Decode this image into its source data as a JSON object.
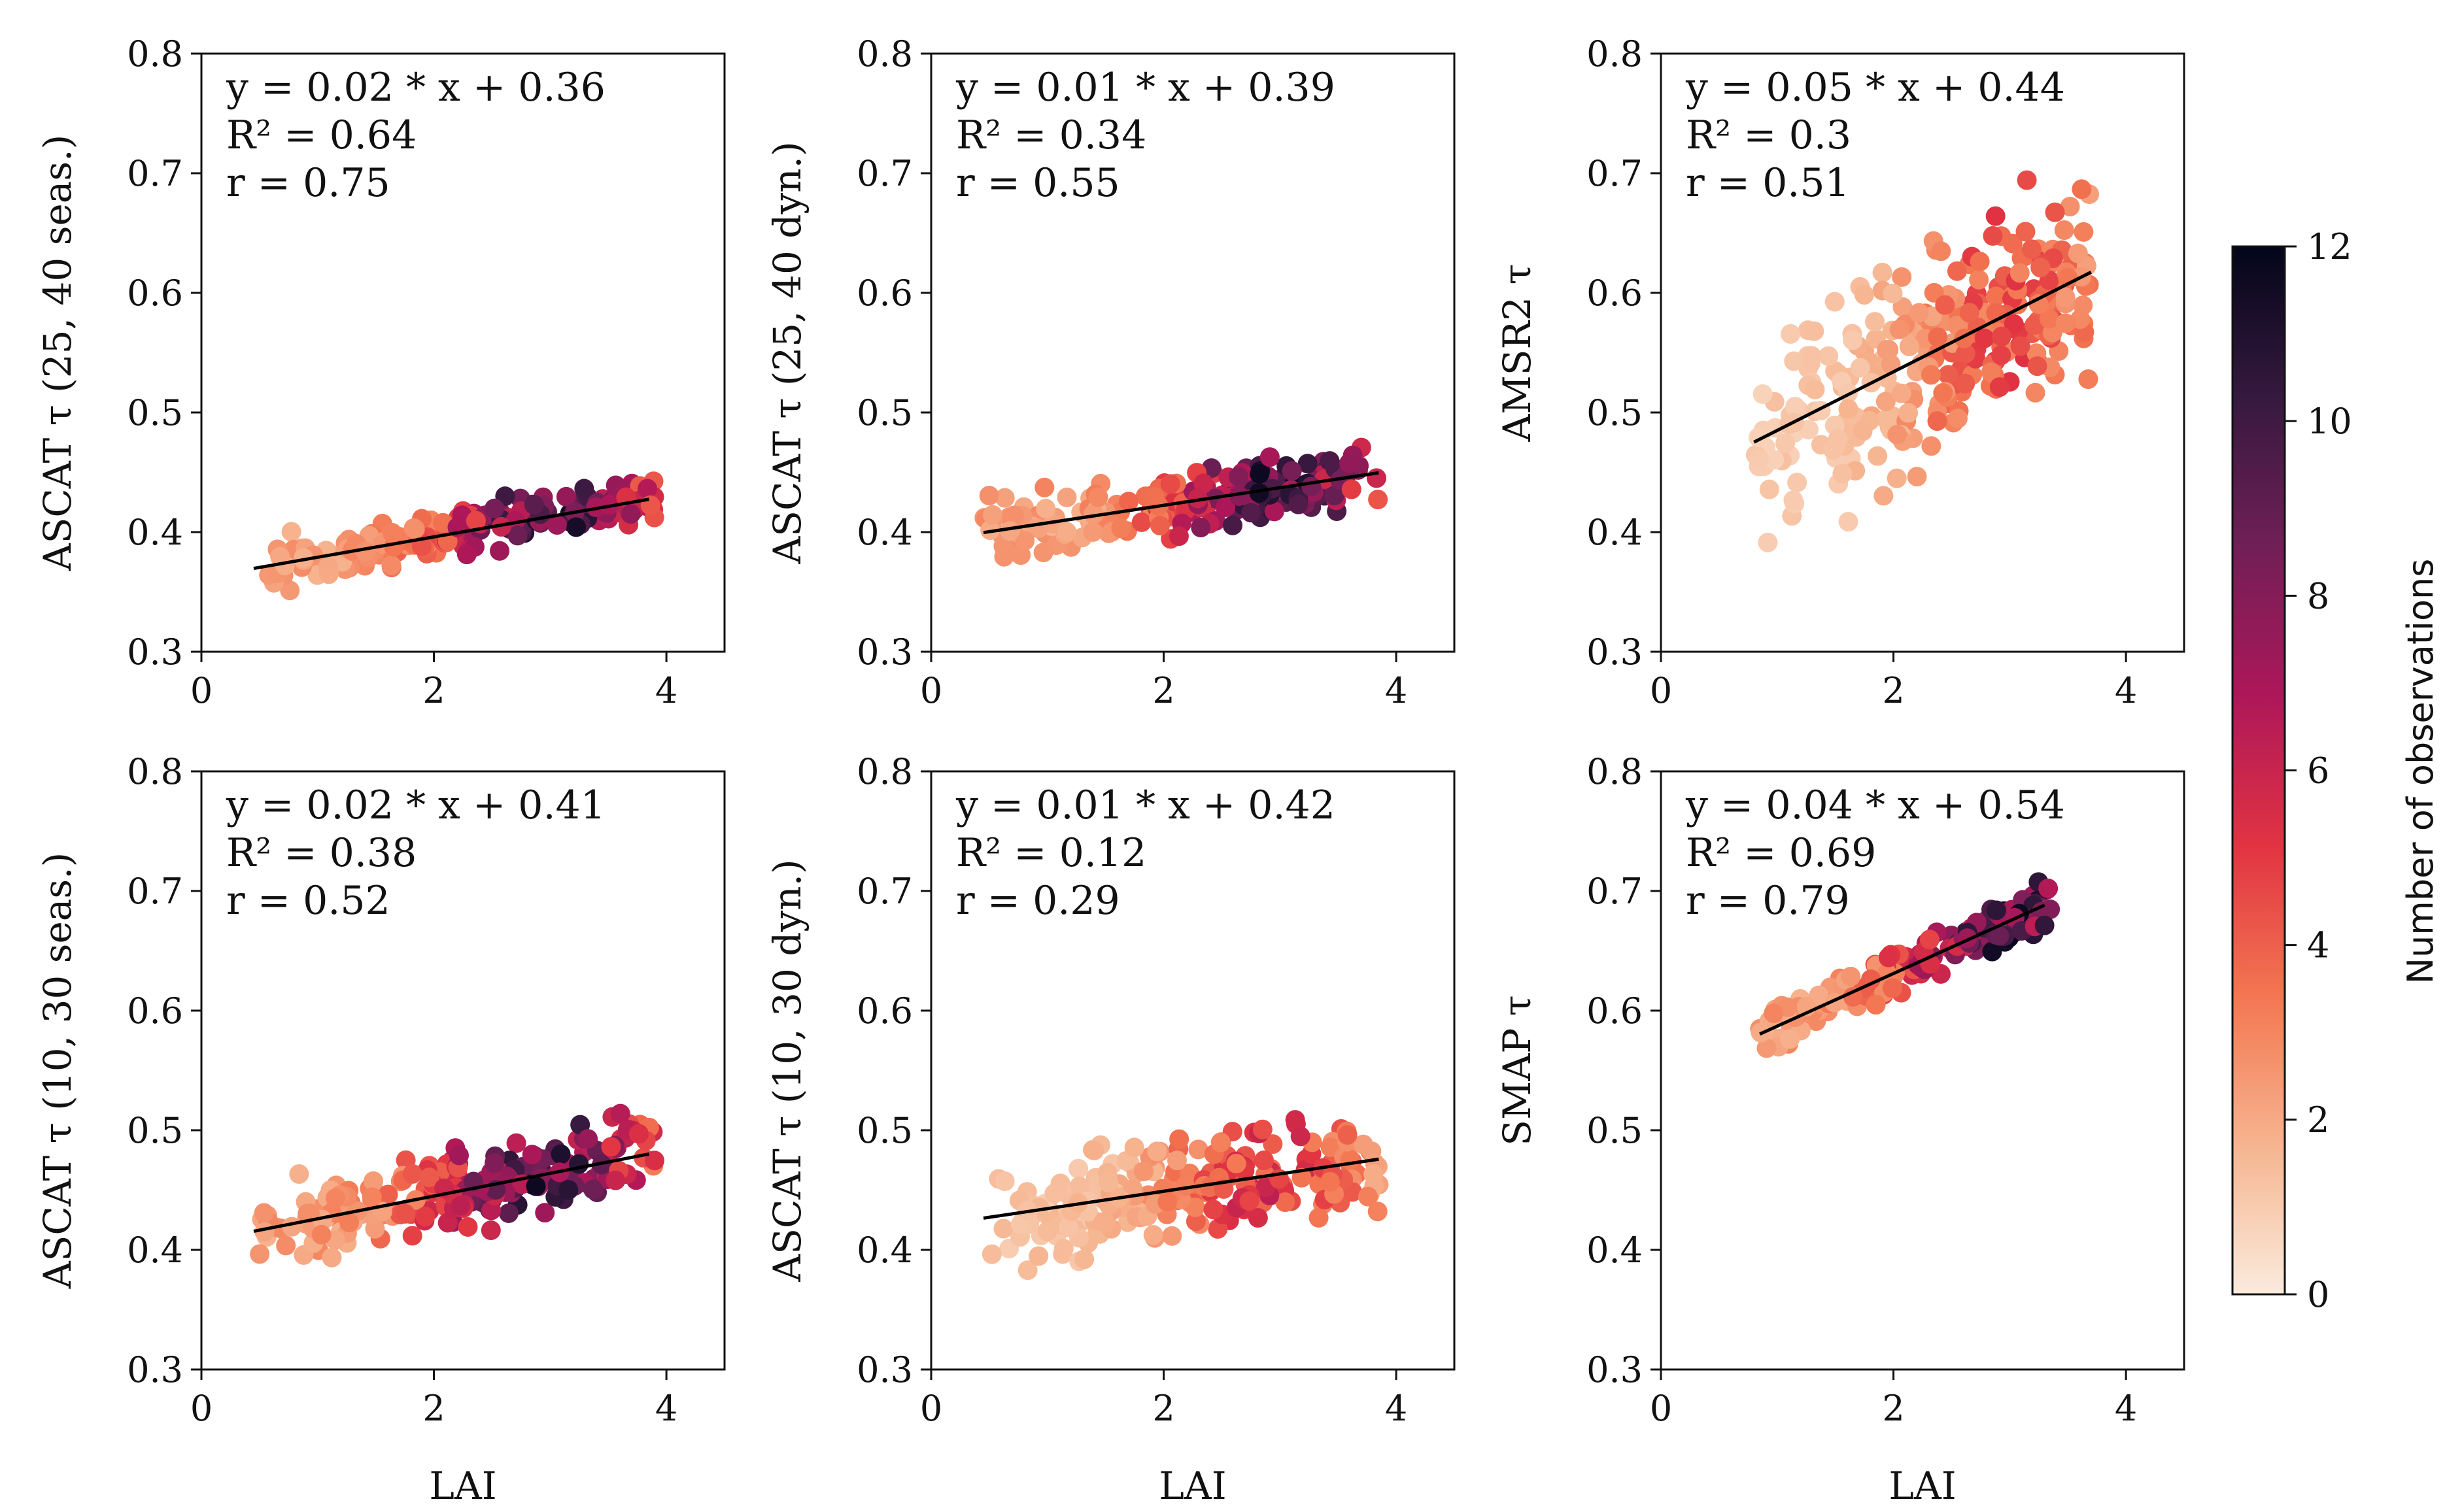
{
  "chart_data": [
    {
      "type": "scatter",
      "xlabel": "",
      "ylabel": "ASCAT τ (25, 40 seas.)",
      "xlim": [
        0,
        4.5
      ],
      "ylim": [
        0.3,
        0.8
      ],
      "xticks": [
        "0",
        "2",
        "4"
      ],
      "yticks": [
        "0.3",
        "0.4",
        "0.5",
        "0.6",
        "0.7",
        "0.8"
      ],
      "annotation": [
        "y = 0.02 * x + 0.36",
        "R² = 0.64",
        "r = 0.75"
      ],
      "fit": {
        "slope": 0.017,
        "intercept": 0.362,
        "x_range": [
          0.45,
          3.85
        ]
      },
      "points": {
        "x_range": [
          0.45,
          3.9
        ],
        "spread": 0.012,
        "color_peak_x": 3.0,
        "n": 220,
        "seed": 11
      }
    },
    {
      "type": "scatter",
      "xlabel": "",
      "ylabel": "ASCAT τ (25, 40 dyn.)",
      "xlim": [
        0,
        4.5
      ],
      "ylim": [
        0.3,
        0.8
      ],
      "xticks": [
        "0",
        "2",
        "4"
      ],
      "yticks": [
        "0.3",
        "0.4",
        "0.5",
        "0.6",
        "0.7",
        "0.8"
      ],
      "annotation": [
        "y = 0.01 * x + 0.39",
        "R² = 0.34",
        "r = 0.55"
      ],
      "fit": {
        "slope": 0.0147,
        "intercept": 0.393,
        "x_range": [
          0.45,
          3.85
        ]
      },
      "points": {
        "x_range": [
          0.45,
          3.85
        ],
        "spread": 0.018,
        "color_peak_x": 3.0,
        "n": 210,
        "seed": 23
      }
    },
    {
      "type": "scatter",
      "xlabel": "",
      "ylabel": "AMSR2 τ",
      "xlim": [
        0,
        4.5
      ],
      "ylim": [
        0.3,
        0.8
      ],
      "xticks": [
        "0",
        "2",
        "4"
      ],
      "yticks": [
        "0.3",
        "0.4",
        "0.5",
        "0.6",
        "0.7",
        "0.8"
      ],
      "annotation": [
        "y = 0.05 * x + 0.44",
        "R² = 0.3",
        "r = 0.51"
      ],
      "fit": {
        "slope": 0.049,
        "intercept": 0.436,
        "x_range": [
          0.8,
          3.7
        ]
      },
      "points": {
        "x_range": [
          0.8,
          3.7
        ],
        "spread": 0.055,
        "color_peak_x": 3.0,
        "n": 300,
        "seed": 37,
        "max_color": 5.5
      }
    },
    {
      "type": "scatter",
      "xlabel": "LAI",
      "ylabel": "ASCAT τ (10, 30 seas.)",
      "xlim": [
        0,
        4.5
      ],
      "ylim": [
        0.3,
        0.8
      ],
      "xticks": [
        "0",
        "2",
        "4"
      ],
      "yticks": [
        "0.3",
        "0.4",
        "0.5",
        "0.6",
        "0.7",
        "0.8"
      ],
      "annotation": [
        "y = 0.02 * x + 0.41",
        "R² = 0.38",
        "r = 0.52"
      ],
      "fit": {
        "slope": 0.019,
        "intercept": 0.407,
        "x_range": [
          0.45,
          3.85
        ]
      },
      "points": {
        "x_range": [
          0.45,
          3.9
        ],
        "spread": 0.02,
        "color_peak_x": 2.9,
        "n": 230,
        "seed": 41
      }
    },
    {
      "type": "scatter",
      "xlabel": "LAI",
      "ylabel": "ASCAT τ (10, 30 dyn.)",
      "xlim": [
        0,
        4.5
      ],
      "ylim": [
        0.3,
        0.8
      ],
      "xticks": [
        "0",
        "2",
        "4"
      ],
      "yticks": [
        "0.3",
        "0.4",
        "0.5",
        "0.6",
        "0.7",
        "0.8"
      ],
      "annotation": [
        "y = 0.01 * x + 0.42",
        "R² = 0.12",
        "r = 0.29"
      ],
      "fit": {
        "slope": 0.0145,
        "intercept": 0.42,
        "x_range": [
          0.45,
          3.85
        ]
      },
      "points": {
        "x_range": [
          0.45,
          3.85
        ],
        "spread": 0.028,
        "color_peak_x": 2.9,
        "n": 240,
        "seed": 53,
        "max_color": 6.5
      }
    },
    {
      "type": "scatter",
      "xlabel": "LAI",
      "ylabel": "SMAP τ",
      "xlim": [
        0,
        4.5
      ],
      "ylim": [
        0.3,
        0.8
      ],
      "xticks": [
        "0",
        "2",
        "4"
      ],
      "yticks": [
        "0.3",
        "0.4",
        "0.5",
        "0.6",
        "0.7",
        "0.8"
      ],
      "annotation": [
        "y = 0.04 * x + 0.54",
        "R² = 0.69",
        "r = 0.79"
      ],
      "fit": {
        "slope": 0.044,
        "intercept": 0.543,
        "x_range": [
          0.85,
          3.3
        ]
      },
      "points": {
        "x_range": [
          0.85,
          3.35
        ],
        "spread": 0.012,
        "color_peak_x": 3.0,
        "n": 170,
        "seed": 67
      }
    }
  ],
  "colorbar": {
    "label": "Number of observations",
    "range": [
      0,
      12
    ],
    "ticks": [
      "0",
      "2",
      "4",
      "6",
      "8",
      "10",
      "12"
    ],
    "colormap": [
      "#faebdd",
      "#f6b48f",
      "#f37651",
      "#e13342",
      "#ad1759",
      "#701f57",
      "#35193e",
      "#03051a"
    ]
  }
}
